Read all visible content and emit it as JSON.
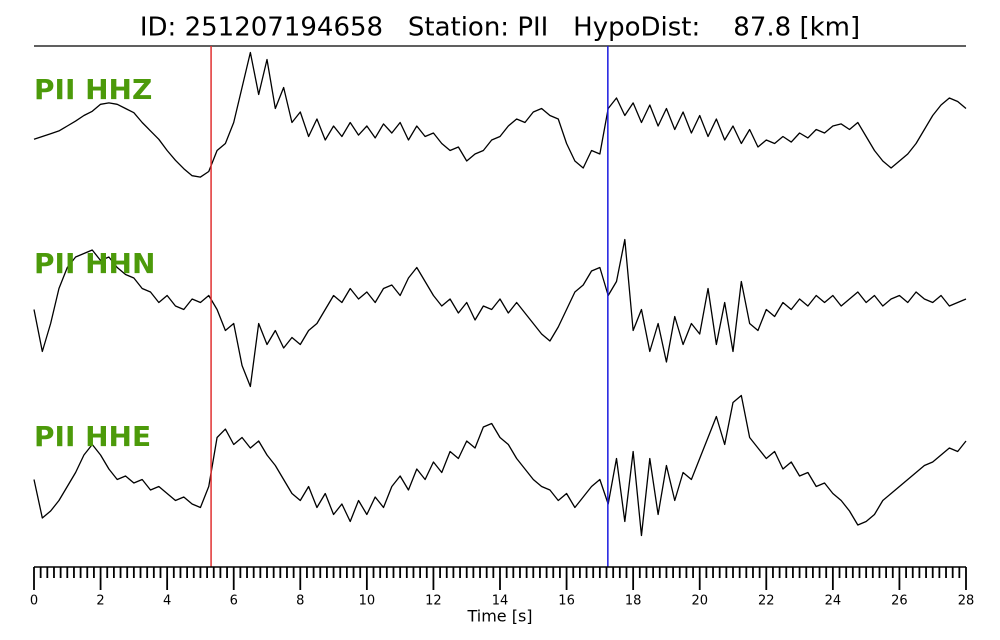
{
  "chart_data": {
    "type": "line",
    "title": "ID: 251207194658   Station: PII   HypoDist:    87.8 [km]",
    "x_label": "Time [s]",
    "xlim": [
      0,
      28
    ],
    "xticks": [
      0,
      2,
      4,
      6,
      8,
      10,
      12,
      14,
      16,
      18,
      20,
      22,
      24,
      26,
      28
    ],
    "xminorticks": [
      0.2,
      0.4,
      0.6,
      0.8,
      1,
      1.2,
      1.4,
      1.6,
      1.8,
      2.2,
      2.4,
      2.6,
      2.8,
      3,
      3.2,
      3.4,
      3.6,
      3.8,
      4.2,
      4.4,
      4.6,
      4.8,
      5,
      5.2,
      5.4,
      5.6,
      5.8,
      6.2,
      6.4,
      6.6,
      6.8,
      7,
      7.2,
      7.4,
      7.6,
      7.8,
      8.2,
      8.4,
      8.6,
      8.8,
      9,
      9.2,
      9.4,
      9.6,
      9.8,
      10.2,
      10.4,
      10.6,
      10.8,
      11,
      11.2,
      11.4,
      11.6,
      11.8,
      12.2,
      12.4,
      12.6,
      12.8,
      13,
      13.2,
      13.4,
      13.6,
      13.8,
      14.2,
      14.4,
      14.6,
      14.8,
      15,
      15.2,
      15.4,
      15.6,
      15.8,
      16.2,
      16.4,
      16.6,
      16.8,
      17,
      17.2,
      17.4,
      17.6,
      17.8,
      18.2,
      18.4,
      18.6,
      18.8,
      19,
      19.2,
      19.4,
      19.6,
      19.8,
      20.2,
      20.4,
      20.6,
      20.8,
      21,
      21.2,
      21.4,
      21.6,
      21.8,
      22.2,
      22.4,
      22.6,
      22.8,
      23,
      23.2,
      23.4,
      23.6,
      23.8,
      24.2,
      24.4,
      24.6,
      24.8,
      25,
      25.2,
      25.4,
      25.6,
      25.8,
      26.2,
      26.4,
      26.6,
      26.8,
      27,
      27.2,
      27.4,
      27.6,
      27.8
    ],
    "ylim": [
      -1.25,
      1.25
    ],
    "label_color": "#4c9a0a",
    "picks": [
      {
        "x": 5.32,
        "color": "#e03030"
      },
      {
        "x": 17.24,
        "color": "#1a1adf"
      }
    ],
    "x": [
      0,
      0.25,
      0.5,
      0.75,
      1,
      1.25,
      1.5,
      1.75,
      2,
      2.25,
      2.5,
      2.75,
      3,
      3.25,
      3.5,
      3.75,
      4,
      4.25,
      4.5,
      4.75,
      5,
      5.25,
      5.5,
      5.75,
      6,
      6.25,
      6.5,
      6.75,
      7,
      7.25,
      7.5,
      7.75,
      8,
      8.25,
      8.5,
      8.75,
      9,
      9.25,
      9.5,
      9.75,
      10,
      10.25,
      10.5,
      10.75,
      11,
      11.25,
      11.5,
      11.75,
      12,
      12.25,
      12.5,
      12.75,
      13,
      13.25,
      13.5,
      13.75,
      14,
      14.25,
      14.5,
      14.75,
      15,
      15.25,
      15.5,
      15.75,
      16,
      16.25,
      16.5,
      16.75,
      17,
      17.25,
      17.5,
      17.75,
      18,
      18.25,
      18.5,
      18.75,
      19,
      19.25,
      19.5,
      19.75,
      20,
      20.25,
      20.5,
      20.75,
      21,
      21.25,
      21.5,
      21.75,
      22,
      22.25,
      22.5,
      22.75,
      23,
      23.25,
      23.5,
      23.75,
      24,
      24.25,
      24.5,
      24.75,
      25,
      25.25,
      25.5,
      25.75,
      26,
      26.25,
      26.5,
      26.75,
      27,
      27.25,
      27.5,
      27.75,
      28
    ],
    "series": [
      {
        "name": "PII HHZ",
        "color": "#000000",
        "values": [
          -0.14,
          -0.1,
          -0.06,
          -0.02,
          0.05,
          0.12,
          0.2,
          0.26,
          0.36,
          0.38,
          0.36,
          0.3,
          0.24,
          0.1,
          -0.02,
          -0.14,
          -0.3,
          -0.44,
          -0.56,
          -0.66,
          -0.68,
          -0.6,
          -0.3,
          -0.2,
          0.1,
          0.6,
          1.1,
          0.5,
          1.0,
          0.3,
          0.6,
          0.1,
          0.25,
          -0.1,
          0.15,
          -0.15,
          0.05,
          -0.1,
          0.1,
          -0.08,
          0.05,
          -0.12,
          0.08,
          -0.05,
          0.1,
          -0.15,
          0.05,
          -0.1,
          -0.05,
          -0.2,
          -0.3,
          -0.25,
          -0.45,
          -0.35,
          -0.3,
          -0.15,
          -0.1,
          0.05,
          0.15,
          0.1,
          0.25,
          0.3,
          0.2,
          0.15,
          -0.2,
          -0.45,
          -0.55,
          -0.3,
          -0.35,
          0.3,
          0.45,
          0.2,
          0.38,
          0.1,
          0.35,
          0.05,
          0.3,
          0.0,
          0.25,
          -0.05,
          0.2,
          -0.1,
          0.15,
          -0.15,
          0.05,
          -0.2,
          0.0,
          -0.25,
          -0.15,
          -0.2,
          -0.1,
          -0.18,
          -0.05,
          -0.12,
          0.0,
          -0.05,
          0.05,
          0.08,
          0.0,
          0.1,
          -0.1,
          -0.3,
          -0.45,
          -0.55,
          -0.45,
          -0.35,
          -0.2,
          0.0,
          0.2,
          0.35,
          0.45,
          0.4,
          0.3
        ]
      },
      {
        "name": "PII HHN",
        "color": "#000000",
        "values": [
          0.0,
          -0.6,
          -0.2,
          0.3,
          0.6,
          0.75,
          0.8,
          0.85,
          0.7,
          0.75,
          0.6,
          0.5,
          0.45,
          0.3,
          0.25,
          0.1,
          0.2,
          0.05,
          0.0,
          0.15,
          0.1,
          0.2,
          0.0,
          -0.3,
          -0.2,
          -0.8,
          -1.1,
          -0.2,
          -0.5,
          -0.3,
          -0.55,
          -0.4,
          -0.5,
          -0.3,
          -0.2,
          0.0,
          0.2,
          0.1,
          0.3,
          0.15,
          0.25,
          0.1,
          0.3,
          0.35,
          0.2,
          0.45,
          0.6,
          0.4,
          0.2,
          0.05,
          0.15,
          -0.05,
          0.1,
          -0.15,
          0.05,
          0.0,
          0.15,
          -0.05,
          0.1,
          -0.05,
          -0.2,
          -0.35,
          -0.45,
          -0.25,
          0.0,
          0.25,
          0.35,
          0.55,
          0.6,
          0.2,
          0.4,
          1.0,
          -0.3,
          0.0,
          -0.6,
          -0.2,
          -0.75,
          -0.1,
          -0.5,
          -0.2,
          -0.35,
          0.3,
          -0.5,
          0.1,
          -0.6,
          0.4,
          -0.2,
          -0.3,
          0.0,
          -0.1,
          0.1,
          0.0,
          0.15,
          0.05,
          0.2,
          0.1,
          0.2,
          0.05,
          0.15,
          0.25,
          0.1,
          0.2,
          0.05,
          0.15,
          0.2,
          0.1,
          0.25,
          0.15,
          0.1,
          0.2,
          0.05,
          0.1,
          0.15
        ]
      },
      {
        "name": "PII HHE",
        "color": "#000000",
        "values": [
          0.0,
          -0.55,
          -0.45,
          -0.3,
          -0.1,
          0.1,
          0.35,
          0.5,
          0.35,
          0.15,
          0.0,
          0.05,
          -0.05,
          0.0,
          -0.15,
          -0.1,
          -0.2,
          -0.3,
          -0.25,
          -0.35,
          -0.4,
          -0.1,
          0.6,
          0.72,
          0.5,
          0.6,
          0.45,
          0.55,
          0.35,
          0.2,
          0.0,
          -0.2,
          -0.3,
          -0.1,
          -0.4,
          -0.2,
          -0.5,
          -0.35,
          -0.6,
          -0.3,
          -0.5,
          -0.25,
          -0.4,
          -0.1,
          0.05,
          -0.15,
          0.15,
          0.0,
          0.25,
          0.1,
          0.4,
          0.3,
          0.55,
          0.45,
          0.75,
          0.8,
          0.6,
          0.5,
          0.3,
          0.15,
          0.0,
          -0.1,
          -0.15,
          -0.3,
          -0.2,
          -0.4,
          -0.25,
          -0.1,
          0.0,
          -0.35,
          0.3,
          -0.6,
          0.4,
          -0.8,
          0.3,
          -0.5,
          0.2,
          -0.3,
          0.1,
          0.0,
          0.3,
          0.6,
          0.9,
          0.5,
          1.1,
          1.2,
          0.6,
          0.45,
          0.3,
          0.4,
          0.15,
          0.25,
          0.05,
          0.1,
          -0.1,
          -0.05,
          -0.2,
          -0.3,
          -0.45,
          -0.65,
          -0.6,
          -0.5,
          -0.3,
          -0.2,
          -0.1,
          0.0,
          0.1,
          0.2,
          0.25,
          0.35,
          0.45,
          0.4,
          0.55
        ]
      }
    ]
  }
}
